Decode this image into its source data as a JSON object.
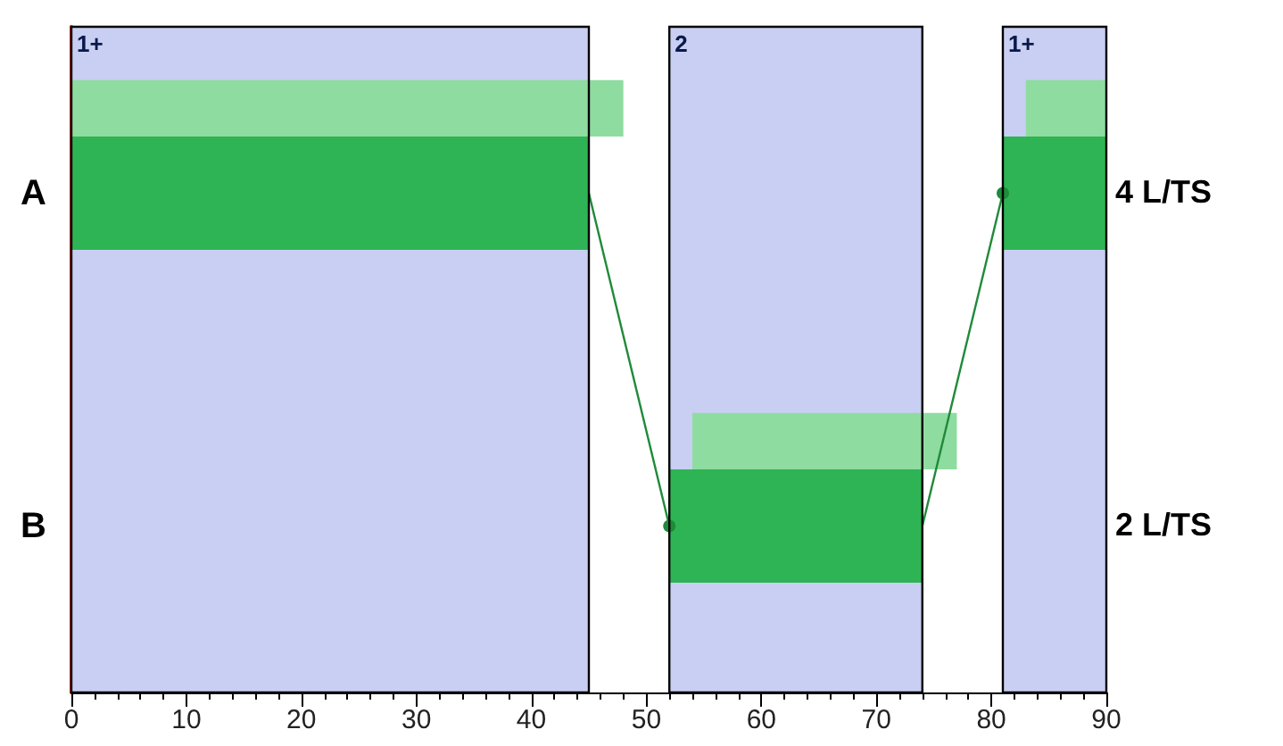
{
  "chart_data": {
    "type": "bar",
    "orientation": "horizontal",
    "categories": [
      "A",
      "B"
    ],
    "series": [
      {
        "color": "#8fdca0",
        "values": [
          48,
          23
        ],
        "base": [
          0,
          54
        ]
      },
      {
        "color": "#8fdca0",
        "values": [
          7,
          null
        ],
        "base": [
          83,
          null
        ]
      },
      {
        "color": "#2eb455",
        "values": [
          45,
          22
        ],
        "base": [
          0,
          52
        ]
      },
      {
        "color": "#2eb455",
        "values": [
          9,
          null
        ],
        "base": [
          81,
          null
        ]
      }
    ],
    "xlim": [
      0,
      90
    ],
    "xticks": [
      0,
      10,
      20,
      30,
      40,
      50,
      60,
      70,
      80,
      90
    ],
    "bands": [
      {
        "axis": "x",
        "from": 0,
        "to": 45,
        "label": "1+",
        "color": "#c8cff2"
      },
      {
        "axis": "x",
        "from": 52,
        "to": 74,
        "label": "2",
        "color": "#c8cff2"
      },
      {
        "axis": "x",
        "from": 81,
        "to": 90,
        "label": "1+",
        "color": "#c8cff2"
      }
    ],
    "annotations": [
      "4 L/TS",
      "2 L/TS"
    ],
    "marker": "circle",
    "grid": false
  }
}
